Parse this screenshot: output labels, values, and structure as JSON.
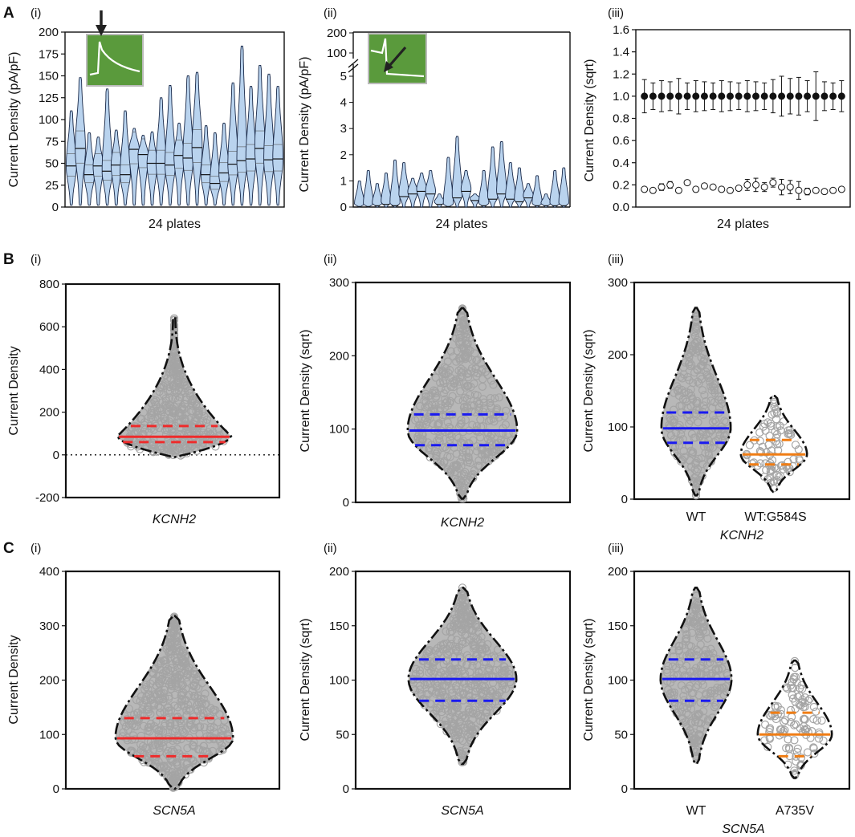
{
  "figure": {
    "panels": [
      {
        "letter": "A",
        "subs": [
          "(i)",
          "(ii)",
          "(iii)"
        ]
      },
      {
        "letter": "B",
        "subs": [
          "(i)",
          "(ii)",
          "(iii)"
        ]
      },
      {
        "letter": "C",
        "subs": [
          "(i)",
          "(ii)",
          "(iii)"
        ]
      }
    ]
  },
  "colors": {
    "violin_fill": "#b9d3ee",
    "inset_bg": "#5a9a3c",
    "gray_points": "#a9a9a9",
    "red": "#ee2b2b",
    "blue": "#1a1af0",
    "orange": "#f07d14"
  },
  "icons": {
    "arrow": "arrow-icon",
    "inset": "current-trace-inset"
  },
  "chart_data": [
    {
      "id": "A-i",
      "type": "violin",
      "ylabel": "Current Density (pA/pF)",
      "xlabel": "24 plates",
      "ylim": [
        0,
        200
      ],
      "yticks": [
        "0",
        "25",
        "50",
        "75",
        "100",
        "125",
        "150",
        "175",
        "200"
      ],
      "series": [
        {
          "name": "plates",
          "medians": [
            47,
            67,
            37,
            47,
            41,
            48,
            37,
            66,
            60,
            50,
            50,
            48,
            59,
            56,
            68,
            37,
            27,
            39,
            49,
            53,
            55,
            67,
            54,
            55
          ],
          "max": [
            110,
            148,
            85,
            80,
            135,
            88,
            110,
            90,
            82,
            86,
            125,
            139,
            96,
            150,
            154,
            93,
            85,
            96,
            142,
            184,
            138,
            162,
            152,
            138
          ]
        }
      ]
    },
    {
      "id": "A-ii",
      "type": "violin",
      "ylabel": "Current Density (pA/pF)",
      "xlabel": "24 plates",
      "ylim": [
        0,
        5
      ],
      "ybreak_ticks": [
        "100",
        "200"
      ],
      "yticks": [
        "0",
        "1",
        "2",
        "3",
        "4",
        "5"
      ],
      "series": [
        {
          "name": "plates",
          "medians": [
            0.02,
            0.02,
            0.05,
            0.1,
            0.05,
            0.4,
            0.5,
            0.6,
            0.5,
            0.1,
            0.02,
            0.35,
            0.6,
            0.25,
            0.05,
            0.3,
            0.5,
            0.3,
            0.2,
            0.35,
            0.05,
            0.05,
            0.05,
            0.05
          ],
          "max": [
            1,
            1.4,
            0.9,
            1.3,
            1.8,
            1.7,
            1.1,
            1.3,
            1.4,
            0.5,
            1.9,
            2.7,
            1.4,
            0.5,
            1.4,
            2.3,
            2.5,
            1.7,
            1.5,
            0.9,
            1.2,
            0.5,
            1.4,
            1.5
          ]
        }
      ]
    },
    {
      "id": "A-iii",
      "type": "scatter",
      "ylabel": "Current Density (sqrt)",
      "xlabel": "24 plates",
      "ylim": [
        0,
        1.6
      ],
      "yticks": [
        "0.0",
        "0.2",
        "0.4",
        "0.6",
        "0.8",
        "1.0",
        "1.2",
        "1.4",
        "1.6"
      ],
      "series": [
        {
          "name": "filled",
          "values": [
            1,
            1,
            1,
            1,
            1,
            1,
            1,
            1,
            1,
            1,
            1,
            1,
            1,
            1,
            1,
            1,
            1,
            1,
            1,
            1,
            1,
            1,
            1,
            1
          ],
          "err": [
            0.15,
            0.12,
            0.14,
            0.13,
            0.16,
            0.12,
            0.14,
            0.13,
            0.12,
            0.14,
            0.13,
            0.12,
            0.14,
            0.13,
            0.12,
            0.15,
            0.18,
            0.16,
            0.17,
            0.14,
            0.22,
            0.13,
            0.12,
            0.14
          ]
        },
        {
          "name": "open",
          "values": [
            0.16,
            0.15,
            0.18,
            0.2,
            0.15,
            0.22,
            0.16,
            0.19,
            0.18,
            0.16,
            0.15,
            0.17,
            0.2,
            0.2,
            0.18,
            0.22,
            0.18,
            0.18,
            0.15,
            0.14,
            0.15,
            0.14,
            0.15,
            0.16
          ],
          "err": [
            0.02,
            0.02,
            0.03,
            0.03,
            0.02,
            0.02,
            0.02,
            0.02,
            0.02,
            0.02,
            0.02,
            0.02,
            0.05,
            0.06,
            0.04,
            0.04,
            0.07,
            0.06,
            0.08,
            0.03,
            0.02,
            0.02,
            0.02,
            0.02
          ]
        }
      ]
    },
    {
      "id": "B-i",
      "type": "violin",
      "ylabel": "Current Density",
      "xlabel": "KCNH2",
      "ylim": [
        -200,
        800
      ],
      "yticks": [
        "-200",
        "0",
        "200",
        "400",
        "600",
        "800"
      ],
      "series": [
        {
          "name": "KCNH2",
          "median": 85,
          "q1": 60,
          "q3": 135,
          "min": -10,
          "max": 640,
          "color": "red"
        }
      ]
    },
    {
      "id": "B-ii",
      "type": "violin",
      "ylabel": "Current Density (sqrt)",
      "xlabel": "KCNH2",
      "ylim": [
        0,
        300
      ],
      "yticks": [
        "0",
        "100",
        "200",
        "300"
      ],
      "series": [
        {
          "name": "KCNH2",
          "median": 98,
          "q1": 78,
          "q3": 120,
          "min": 5,
          "max": 265,
          "color": "blue"
        }
      ]
    },
    {
      "id": "B-iii",
      "type": "violin",
      "ylabel": "Current Density (sqrt)",
      "xlabel": "KCNH2",
      "categories": [
        "WT",
        "WT:G584S"
      ],
      "ylim": [
        0,
        300
      ],
      "yticks": [
        "0",
        "100",
        "200",
        "300"
      ],
      "series": [
        {
          "name": "WT",
          "median": 98,
          "q1": 78,
          "q3": 120,
          "min": 5,
          "max": 265,
          "color": "blue"
        },
        {
          "name": "WT:G584S",
          "median": 62,
          "q1": 48,
          "q3": 82,
          "min": 10,
          "max": 143,
          "color": "orange"
        }
      ]
    },
    {
      "id": "C-i",
      "type": "violin",
      "ylabel": "Current Density",
      "xlabel": "SCN5A",
      "ylim": [
        0,
        400
      ],
      "yticks": [
        "0",
        "100",
        "200",
        "300",
        "400"
      ],
      "series": [
        {
          "name": "SCN5A",
          "median": 93,
          "q1": 60,
          "q3": 130,
          "min": 0,
          "max": 318,
          "color": "red"
        }
      ]
    },
    {
      "id": "C-ii",
      "type": "violin",
      "ylabel": "Current Density (sqrt)",
      "xlabel": "SCN5A",
      "ylim": [
        0,
        200
      ],
      "yticks": [
        "0",
        "50",
        "100",
        "150",
        "200"
      ],
      "series": [
        {
          "name": "SCN5A",
          "median": 101,
          "q1": 81,
          "q3": 119,
          "min": 23,
          "max": 185,
          "color": "blue"
        }
      ]
    },
    {
      "id": "C-iii",
      "type": "violin",
      "ylabel": "Current Density (sqrt)",
      "xlabel": "SCN5A",
      "categories": [
        "WT",
        "A735V"
      ],
      "ylim": [
        0,
        200
      ],
      "yticks": [
        "0",
        "50",
        "100",
        "150",
        "200"
      ],
      "series": [
        {
          "name": "WT",
          "median": 101,
          "q1": 81,
          "q3": 119,
          "min": 23,
          "max": 185,
          "color": "blue"
        },
        {
          "name": "A735V",
          "median": 50,
          "q1": 30,
          "q3": 70,
          "min": 10,
          "max": 118,
          "color": "orange"
        }
      ]
    }
  ]
}
